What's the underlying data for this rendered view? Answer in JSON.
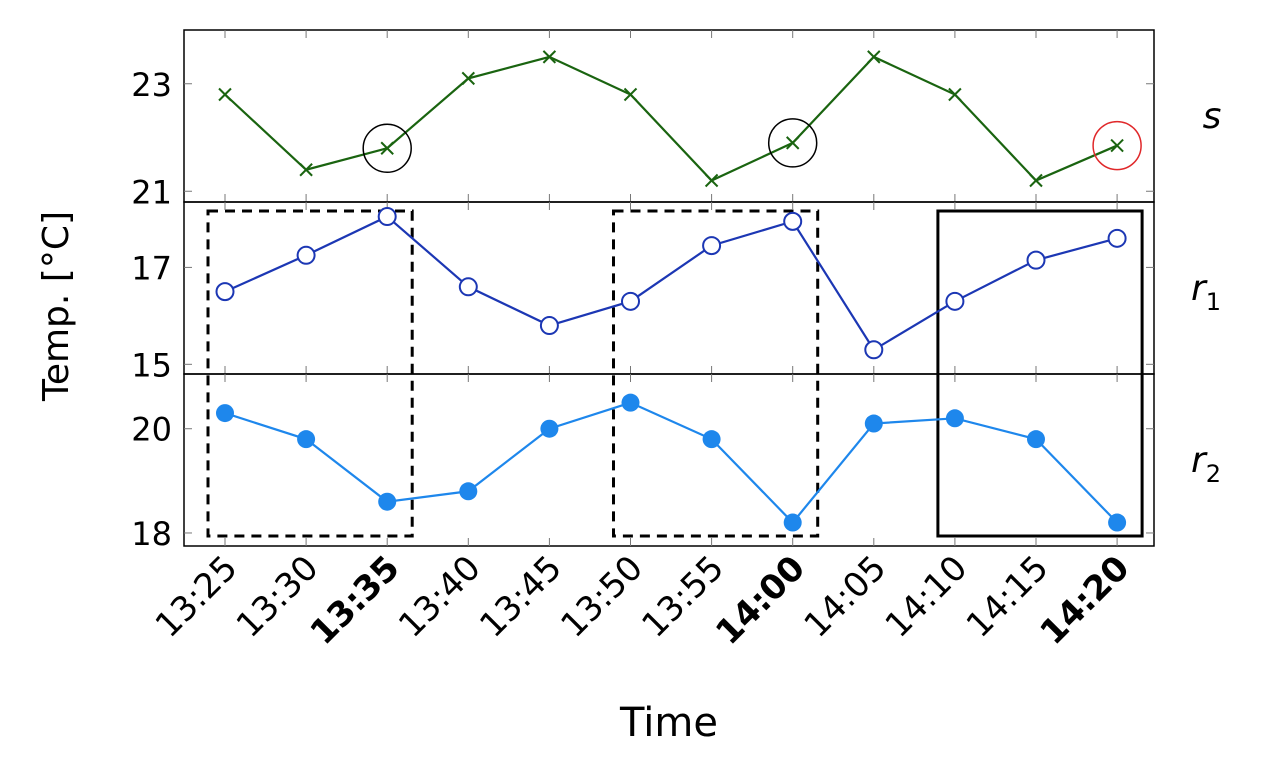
{
  "chart_data": {
    "type": "line",
    "xlabel": "Time",
    "ylabel": "Temp. [°C]",
    "x": [
      "13:25",
      "13:30",
      "13:35",
      "13:40",
      "13:45",
      "13:50",
      "13:55",
      "14:00",
      "14:05",
      "14:10",
      "14:15",
      "14:20"
    ],
    "bold_x": [
      "13:35",
      "14:00",
      "14:20"
    ],
    "grid": false,
    "panels": [
      {
        "key": "s",
        "label": "s",
        "subscript": "",
        "yticks": [
          21,
          23
        ],
        "ylim": [
          20.8,
          24.0
        ],
        "color": "#1a6410",
        "marker": "cross",
        "values": [
          22.8,
          21.4,
          21.8,
          23.1,
          23.5,
          22.8,
          21.2,
          21.9,
          23.5,
          22.8,
          21.2,
          21.85
        ],
        "circled": [
          {
            "index": 2,
            "color": "#000000"
          },
          {
            "index": 7,
            "color": "#000000"
          },
          {
            "index": 11,
            "color": "#e0282a"
          }
        ]
      },
      {
        "key": "r1",
        "label": "r",
        "subscript": "1",
        "yticks": [
          15,
          17
        ],
        "ylim": [
          14.8,
          18.35
        ],
        "color": "#1c37b4",
        "marker": "open-circle",
        "values": [
          16.5,
          17.25,
          18.05,
          16.6,
          15.8,
          16.3,
          17.45,
          17.95,
          15.3,
          16.3,
          17.15,
          17.6
        ]
      },
      {
        "key": "r2",
        "label": "r",
        "subscript": "2",
        "yticks": [
          18,
          20
        ],
        "ylim": [
          17.75,
          21.05
        ],
        "color": "#1e87ec",
        "marker": "filled-circle",
        "values": [
          20.3,
          19.8,
          18.6,
          18.8,
          20.0,
          20.5,
          19.8,
          18.2,
          20.1,
          20.2,
          19.8,
          18.2
        ]
      }
    ],
    "highlight_boxes": [
      {
        "from": "13:25",
        "to": "13:35",
        "style": "dashed"
      },
      {
        "from": "13:50",
        "to": "14:00",
        "style": "dashed"
      },
      {
        "from": "14:10",
        "to": "14:20",
        "style": "solid"
      }
    ]
  }
}
